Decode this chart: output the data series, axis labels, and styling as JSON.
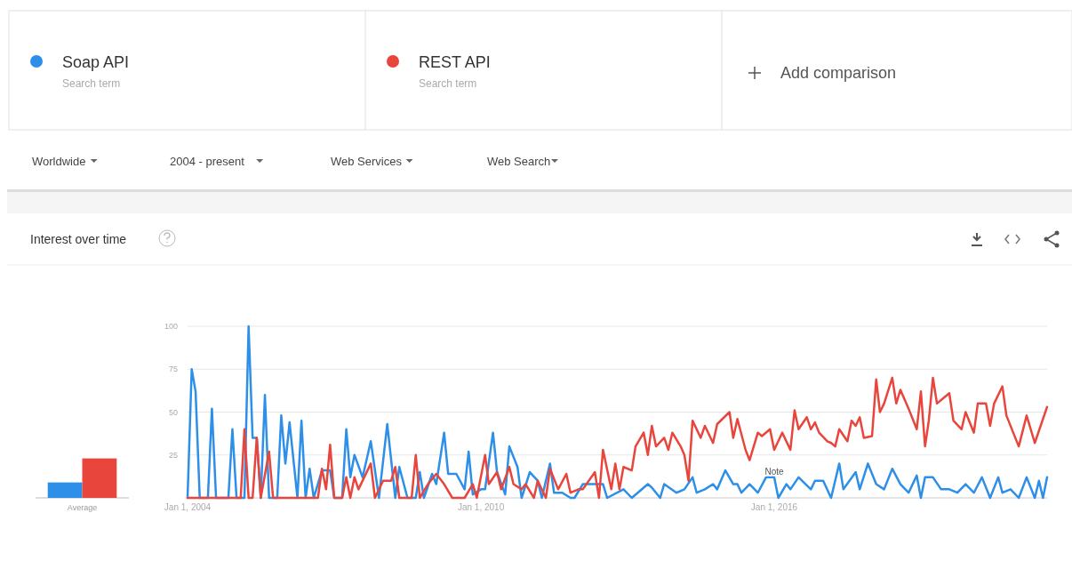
{
  "chart_data": [
    {
      "type": "bar",
      "title": "Interest over time",
      "categories": [
        "Average"
      ],
      "ylim": [
        0,
        100
      ],
      "tick_labels": "x",
      "series": [
        {
          "color": "#2d8fe8",
          "values": [
            9
          ]
        },
        {
          "color": "#e8453c",
          "values": [
            23
          ]
        }
      ]
    },
    {
      "type": "line",
      "legend": "top left",
      "grid": "y",
      "ylim": [
        0,
        100
      ],
      "yticks": [
        25,
        50,
        75,
        100
      ],
      "xlim": [
        "2004-01",
        "2021-08"
      ],
      "xticks": [
        {
          "value": "2004-01-01",
          "label": "Jan 1, 2004"
        },
        {
          "value": "2010-01-01",
          "label": "Jan 1, 2010"
        },
        {
          "value": "2016-01-01",
          "label": "Jan 1, 2016"
        }
      ],
      "annotations": [
        "Search term",
        "Search term",
        "Add comparison",
        "Worldwide",
        "2004 - present",
        "Web Services",
        "Web Search",
        {
          "text": "Note",
          "x": "2016-01",
          "y": 5
        }
      ],
      "series": [
        {
          "name": "Soap API",
          "color": "#2d8fe8",
          "x": [
            "2004-01",
            "2004-02",
            "2004-03",
            "2004-04",
            "2004-06",
            "2004-07",
            "2004-08",
            "2004-11",
            "2004-12",
            "2005-01",
            "2005-03",
            "2005-04",
            "2005-05",
            "2005-06",
            "2005-07",
            "2005-08",
            "2005-09",
            "2005-11",
            "2005-12",
            "2006-01",
            "2006-02",
            "2006-04",
            "2006-05",
            "2006-06",
            "2006-07",
            "2006-08",
            "2006-10",
            "2006-12",
            "2007-01",
            "2007-03",
            "2007-04",
            "2007-05",
            "2007-06",
            "2007-08",
            "2007-10",
            "2007-12",
            "2008-02",
            "2008-04",
            "2008-05",
            "2008-07",
            "2008-09",
            "2008-10",
            "2008-11",
            "2009-01",
            "2009-02",
            "2009-04",
            "2009-05",
            "2009-07",
            "2009-09",
            "2009-10",
            "2009-11",
            "2010-01",
            "2010-02",
            "2010-04",
            "2010-05",
            "2010-07",
            "2010-08",
            "2010-10",
            "2010-11",
            "2011-01",
            "2011-03",
            "2011-04",
            "2011-06",
            "2011-07",
            "2011-09",
            "2011-11",
            "2011-12",
            "2012-02",
            "2012-05",
            "2012-07",
            "2012-08",
            "2012-12",
            "2013-02",
            "2013-06",
            "2013-07",
            "2013-09",
            "2013-10",
            "2014-01",
            "2014-03",
            "2014-05",
            "2014-06",
            "2014-08",
            "2014-10",
            "2014-11",
            "2015-01",
            "2015-03",
            "2015-04",
            "2015-05",
            "2015-07",
            "2015-09",
            "2015-11",
            "2016-01",
            "2016-02",
            "2016-04",
            "2016-05",
            "2016-07",
            "2016-10",
            "2016-11",
            "2017-01",
            "2017-03",
            "2017-05",
            "2017-06",
            "2017-09",
            "2017-10",
            "2017-12",
            "2018-02",
            "2018-04",
            "2018-06",
            "2018-08",
            "2018-10",
            "2018-12",
            "2019-01",
            "2019-02",
            "2019-04",
            "2019-06",
            "2019-08",
            "2019-10",
            "2019-12",
            "2020-02",
            "2020-04",
            "2020-06",
            "2020-08",
            "2020-09",
            "2020-11",
            "2021-01",
            "2021-03",
            "2021-05",
            "2021-06",
            "2021-07",
            "2021-08"
          ],
          "values": [
            0,
            75,
            62,
            0,
            0,
            52,
            0,
            0,
            40,
            0,
            0,
            100,
            35,
            35,
            0,
            60,
            0,
            0,
            48,
            20,
            44,
            0,
            45,
            0,
            17,
            0,
            16,
            16,
            0,
            0,
            40,
            12,
            25,
            12,
            33,
            0,
            43,
            0,
            18,
            0,
            0,
            15,
            0,
            14,
            8,
            38,
            14,
            14,
            5,
            27,
            2,
            5,
            5,
            38,
            15,
            2,
            30,
            18,
            0,
            15,
            10,
            0,
            20,
            3,
            3,
            0,
            0,
            8,
            8,
            8,
            0,
            5,
            0,
            8,
            6,
            0,
            8,
            3,
            5,
            12,
            3,
            5,
            8,
            5,
            16,
            8,
            8,
            3,
            8,
            3,
            12,
            12,
            0,
            8,
            5,
            12,
            5,
            10,
            10,
            0,
            20,
            5,
            15,
            5,
            20,
            8,
            5,
            17,
            8,
            3,
            13,
            0,
            12,
            12,
            5,
            5,
            3,
            8,
            3,
            12,
            0,
            12,
            3,
            5,
            0,
            12,
            0,
            10,
            0,
            12
          ]
        },
        {
          "name": "REST API",
          "color": "#e8453c",
          "x": [
            "2004-01",
            "2005-02",
            "2005-03",
            "2005-04",
            "2005-05",
            "2005-06",
            "2005-07",
            "2005-09",
            "2005-10",
            "2006-09",
            "2006-10",
            "2006-11",
            "2006-12",
            "2007-01",
            "2007-03",
            "2007-04",
            "2007-05",
            "2007-06",
            "2007-07",
            "2007-10",
            "2007-11",
            "2008-01",
            "2008-03",
            "2008-04",
            "2008-05",
            "2008-08",
            "2008-09",
            "2008-10",
            "2008-12",
            "2009-02",
            "2009-04",
            "2009-06",
            "2009-09",
            "2009-11",
            "2009-12",
            "2010-02",
            "2010-03",
            "2010-05",
            "2010-06",
            "2010-08",
            "2010-09",
            "2010-11",
            "2010-12",
            "2011-02",
            "2011-03",
            "2011-05",
            "2011-06",
            "2011-08",
            "2011-10",
            "2011-11",
            "2012-01",
            "2012-02",
            "2012-05",
            "2012-06",
            "2012-07",
            "2012-09",
            "2012-10",
            "2012-11",
            "2012-12",
            "2013-02",
            "2013-03",
            "2013-05",
            "2013-06",
            "2013-07",
            "2013-08",
            "2013-10",
            "2013-11",
            "2013-12",
            "2014-02",
            "2014-03",
            "2014-04",
            "2014-05",
            "2014-07",
            "2014-08",
            "2014-10",
            "2014-11",
            "2015-02",
            "2015-03",
            "2015-04",
            "2015-06",
            "2015-07",
            "2015-09",
            "2015-10",
            "2015-12",
            "2016-01",
            "2016-03",
            "2016-05",
            "2016-06",
            "2016-07",
            "2016-09",
            "2016-10",
            "2016-11",
            "2016-12",
            "2017-02",
            "2017-03",
            "2017-04",
            "2017-05",
            "2017-07",
            "2017-08",
            "2017-09",
            "2017-10",
            "2017-11",
            "2018-01",
            "2018-02",
            "2018-03",
            "2018-04",
            "2018-06",
            "2018-07",
            "2018-08",
            "2018-10",
            "2018-12",
            "2019-01",
            "2019-02",
            "2019-03",
            "2019-04",
            "2019-05",
            "2019-08",
            "2019-09",
            "2019-11",
            "2019-12",
            "2020-02",
            "2020-03",
            "2020-05",
            "2020-06",
            "2020-07",
            "2020-09",
            "2020-10",
            "2021-01",
            "2021-03",
            "2021-05",
            "2021-08"
          ],
          "values": [
            0,
            0,
            40,
            0,
            0,
            35,
            0,
            27,
            0,
            0,
            17,
            5,
            31,
            0,
            0,
            12,
            0,
            12,
            5,
            20,
            0,
            10,
            10,
            18,
            0,
            0,
            25,
            0,
            8,
            14,
            8,
            0,
            0,
            8,
            0,
            25,
            8,
            15,
            5,
            18,
            8,
            5,
            8,
            0,
            10,
            0,
            17,
            5,
            14,
            3,
            5,
            5,
            15,
            0,
            28,
            5,
            20,
            5,
            18,
            16,
            30,
            38,
            25,
            42,
            30,
            35,
            28,
            38,
            30,
            25,
            10,
            45,
            35,
            42,
            32,
            43,
            50,
            35,
            46,
            28,
            22,
            38,
            36,
            40,
            28,
            38,
            28,
            51,
            40,
            47,
            40,
            44,
            38,
            33,
            32,
            30,
            40,
            33,
            45,
            42,
            47,
            35,
            36,
            69,
            50,
            55,
            70,
            55,
            63,
            52,
            40,
            62,
            30,
            45,
            70,
            55,
            61,
            45,
            40,
            50,
            38,
            55,
            55,
            42,
            55,
            65,
            48,
            30,
            48,
            32,
            53
          ]
        }
      ]
    }
  ]
}
